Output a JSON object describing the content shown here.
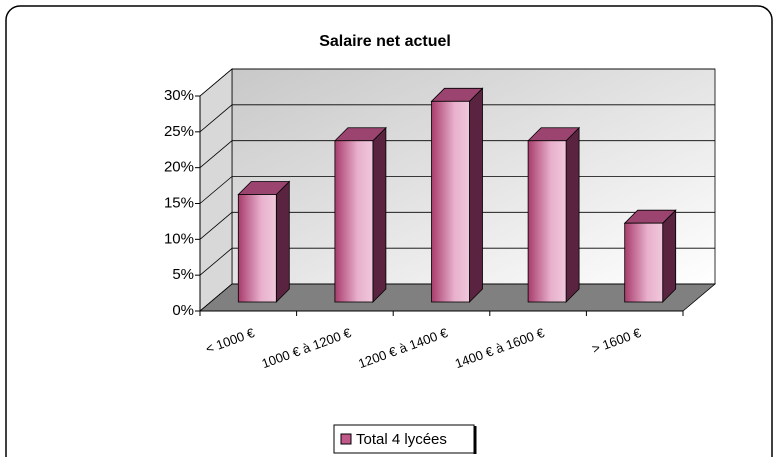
{
  "chart_data": {
    "type": "bar3d",
    "title": "Salaire net actuel",
    "categories": [
      "< 1000 €",
      "1000 € à 1200 €",
      "1200 € à 1400 €",
      "1400 € à 1600 €",
      "> 1600 €"
    ],
    "series": [
      {
        "name": "Total 4 lycées",
        "color": "#c2578a",
        "values": [
          15,
          22.5,
          28,
          22.5,
          11
        ]
      }
    ],
    "ylim": [
      0,
      30
    ],
    "yticks": [
      {
        "value": 0,
        "label": "0%"
      },
      {
        "value": 5,
        "label": "5%"
      },
      {
        "value": 10,
        "label": "10%"
      },
      {
        "value": 15,
        "label": "15%"
      },
      {
        "value": 20,
        "label": "20%"
      },
      {
        "value": 25,
        "label": "25%"
      },
      {
        "value": 30,
        "label": "30%"
      }
    ],
    "grid": true,
    "legend": "bottom"
  }
}
